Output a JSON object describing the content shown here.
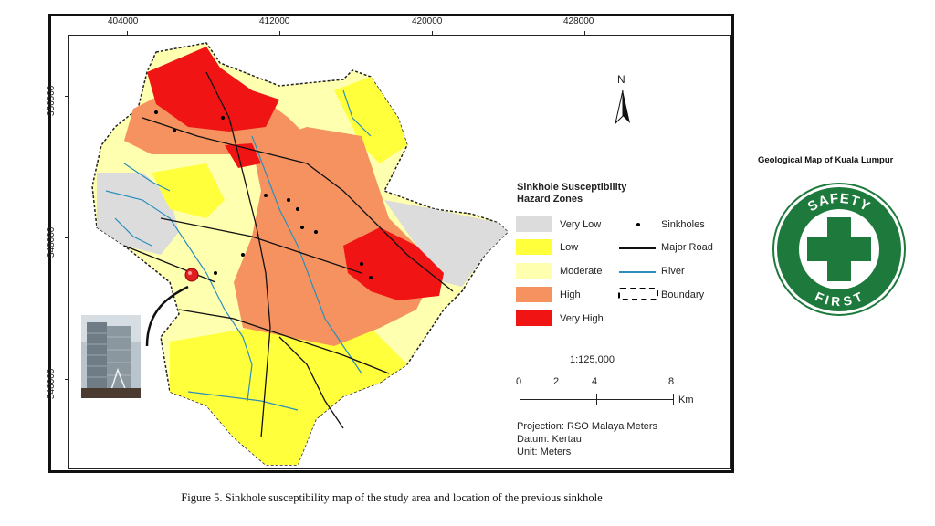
{
  "map": {
    "x_ticks": [
      "404000",
      "412000",
      "420000",
      "428000"
    ],
    "y_ticks": [
      "356000",
      "348000",
      "340000"
    ],
    "north_label": "N",
    "legend": {
      "title_line1": "Sinkhole Susceptibility",
      "title_line2": "Hazard Zones",
      "zones": [
        {
          "label": "Very Low",
          "color": "#dcdcdc"
        },
        {
          "label": "Low",
          "color": "#ffff3c"
        },
        {
          "label": "Moderate",
          "color": "#ffffb0"
        },
        {
          "label": "High",
          "color": "#f5925f"
        },
        {
          "label": "Very High",
          "color": "#f01414"
        }
      ],
      "symbols": {
        "sinkholes": "Sinkholes",
        "major_road": "Major Road",
        "river": "River",
        "boundary": "Boundary"
      }
    },
    "scale_ratio": "1:125,000",
    "scale_labels": [
      "0",
      "2",
      "4",
      "8"
    ],
    "scale_unit": "Km",
    "projection": {
      "line1": "Projection: RSO Malaya Meters",
      "line2": "Datum: Kertau",
      "line3": "Unit: Meters"
    }
  },
  "caption": "Figure 5. Sinkhole susceptibility map of the study area and location of the previous sinkhole",
  "side": {
    "geo_title": "Geological Map of Kuala Lumpur",
    "badge_top": "SAFETY",
    "badge_bottom": "FIRST",
    "badge_color": "#1e7a3c"
  }
}
